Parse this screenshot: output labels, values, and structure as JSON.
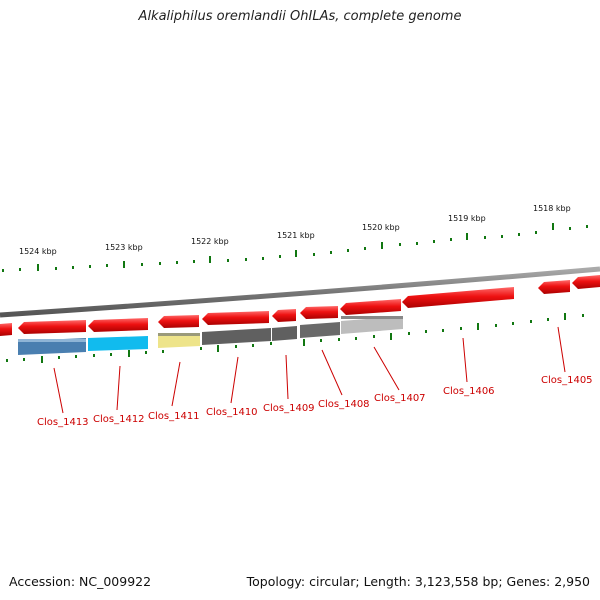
{
  "header": {
    "title": "Alkaliphilus oremlandii OhILAs, complete genome"
  },
  "footer": {
    "accession": "Accession: NC_009922",
    "summary": "Topology: circular; Length: 3,123,558 bp; Genes: 2,950"
  },
  "scale_labels": [
    "1524 kbp",
    "1523 kbp",
    "1522 kbp",
    "1521 kbp",
    "1520 kbp",
    "1519 kbp",
    "1518 kbp"
  ],
  "gene_labels": [
    "Clos_1413",
    "Clos_1412",
    "Clos_1411",
    "Clos_1410",
    "Clos_1409",
    "Clos_1408",
    "Clos_1407",
    "Clos_1406",
    "Clos_1405"
  ],
  "colors": {
    "forward_gene": "#ee1111",
    "backbone": "#888888",
    "tick": "#117711",
    "label": "#cc0000",
    "blast_hits": [
      "#4a7fb0",
      "#11bbee",
      "#eee48a",
      "#606060",
      "#606060",
      "#6a6a6a",
      "#bdbdbd"
    ]
  }
}
